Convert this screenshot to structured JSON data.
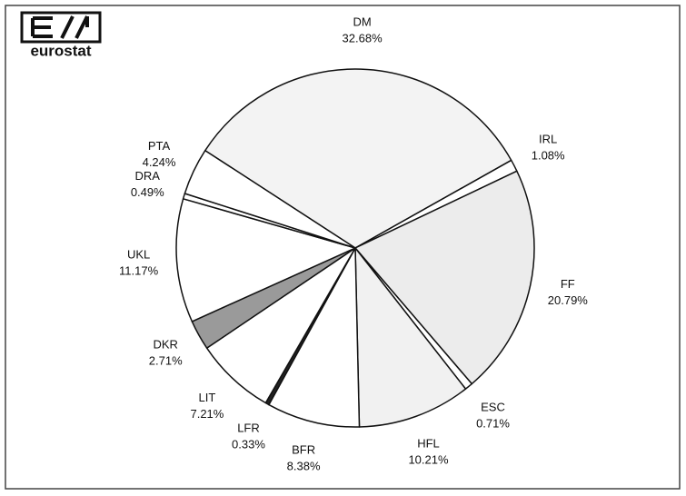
{
  "logo": {
    "text": "eurostat"
  },
  "chart_data": {
    "type": "pie",
    "categories": [
      "DM",
      "IRL",
      "FF",
      "ESC",
      "HFL",
      "BFR",
      "LFR",
      "LIT",
      "DKR",
      "UKL",
      "DRA",
      "PTA"
    ],
    "values": [
      32.68,
      1.08,
      20.79,
      0.71,
      10.21,
      8.38,
      0.33,
      7.21,
      2.71,
      11.17,
      0.49,
      4.24
    ],
    "value_labels": [
      "32.68%",
      "1.08%",
      "20.79%",
      "0.71%",
      "10.21%",
      "8.38%",
      "0.33%",
      "7.21%",
      "2.71%",
      "11.17%",
      "0.49%",
      "4.24%"
    ],
    "colors": [
      "#f3f3f3",
      "#ffffff",
      "#ececec",
      "#ffffff",
      "#f1f1f1",
      "#ffffff",
      "#222222",
      "#ffffff",
      "#9a9a9a",
      "#ffffff",
      "#ffffff",
      "#ffffff"
    ]
  }
}
